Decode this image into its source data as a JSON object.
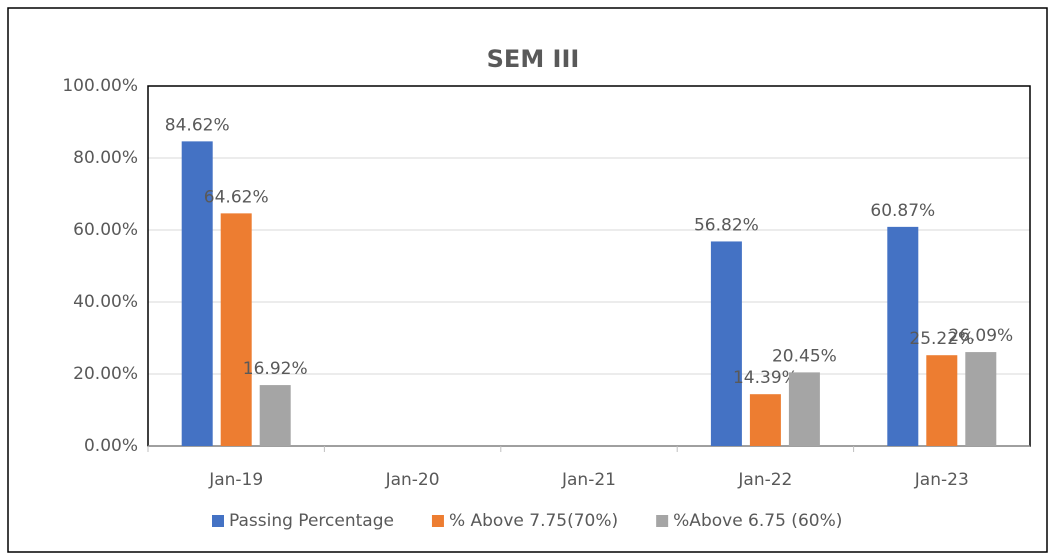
{
  "chart_data": {
    "type": "bar",
    "title": "SEM III",
    "categories": [
      "Jan-19",
      "Jan-20",
      "Jan-21",
      "Jan-22",
      "Jan-23"
    ],
    "series": [
      {
        "name": "Passing Percentage",
        "color": "#4472c4",
        "values": [
          84.62,
          null,
          null,
          56.82,
          60.87
        ],
        "value_labels": [
          "84.62%",
          null,
          null,
          "56.82%",
          "60.87%"
        ]
      },
      {
        "name": "% Above 7.75(70%)",
        "color": "#ed7d31",
        "values": [
          64.62,
          null,
          null,
          14.39,
          25.22
        ],
        "value_labels": [
          "64.62%",
          null,
          null,
          "14.39%",
          "25.22%"
        ]
      },
      {
        "name": "%Above 6.75 (60%)",
        "color": "#a5a5a5",
        "values": [
          16.92,
          null,
          null,
          20.45,
          26.09
        ],
        "value_labels": [
          "16.92%",
          null,
          null,
          "20.45%",
          "26.09%"
        ]
      }
    ],
    "ylim": [
      0,
      100
    ],
    "yticks": [
      {
        "value": 0,
        "label": "0.00%"
      },
      {
        "value": 20,
        "label": "20.00%"
      },
      {
        "value": 40,
        "label": "40.00%"
      },
      {
        "value": 60,
        "label": "60.00%"
      },
      {
        "value": 80,
        "label": "80.00%"
      },
      {
        "value": 100,
        "label": "100.00%"
      }
    ],
    "grid": true,
    "legend": "bottom"
  }
}
